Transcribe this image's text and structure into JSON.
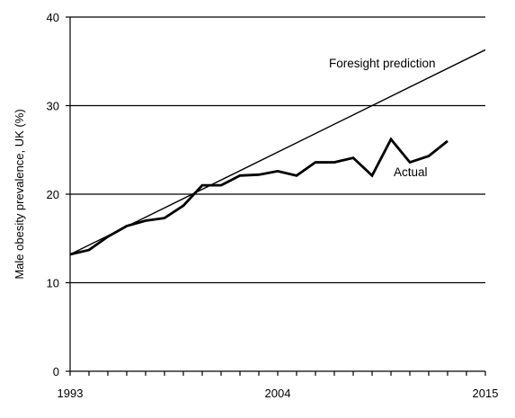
{
  "chart_data": {
    "type": "line",
    "title": "",
    "xlabel": "",
    "ylabel": "Male obesity prevalence, UK (%)",
    "xlim": [
      1993,
      2015
    ],
    "ylim": [
      0,
      40
    ],
    "x_ticks": [
      1993,
      2004,
      2015
    ],
    "y_ticks": [
      0,
      10,
      20,
      30,
      40
    ],
    "grid": "horizontal",
    "series": [
      {
        "name": "Foresight prediction",
        "x": [
          1993,
          2015
        ],
        "y": [
          13.2,
          36.3
        ]
      },
      {
        "name": "Actual",
        "x": [
          1993,
          1994,
          1995,
          1996,
          1997,
          1998,
          1999,
          2000,
          2001,
          2002,
          2003,
          2004,
          2005,
          2006,
          2007,
          2008,
          2009,
          2010,
          2011,
          2012,
          2013
        ],
        "y": [
          13.2,
          13.7,
          15.2,
          16.4,
          17.0,
          17.3,
          18.7,
          21.0,
          21.0,
          22.1,
          22.2,
          22.6,
          22.1,
          23.6,
          23.6,
          24.1,
          22.1,
          26.2,
          23.6,
          24.3,
          26.0
        ]
      }
    ]
  }
}
